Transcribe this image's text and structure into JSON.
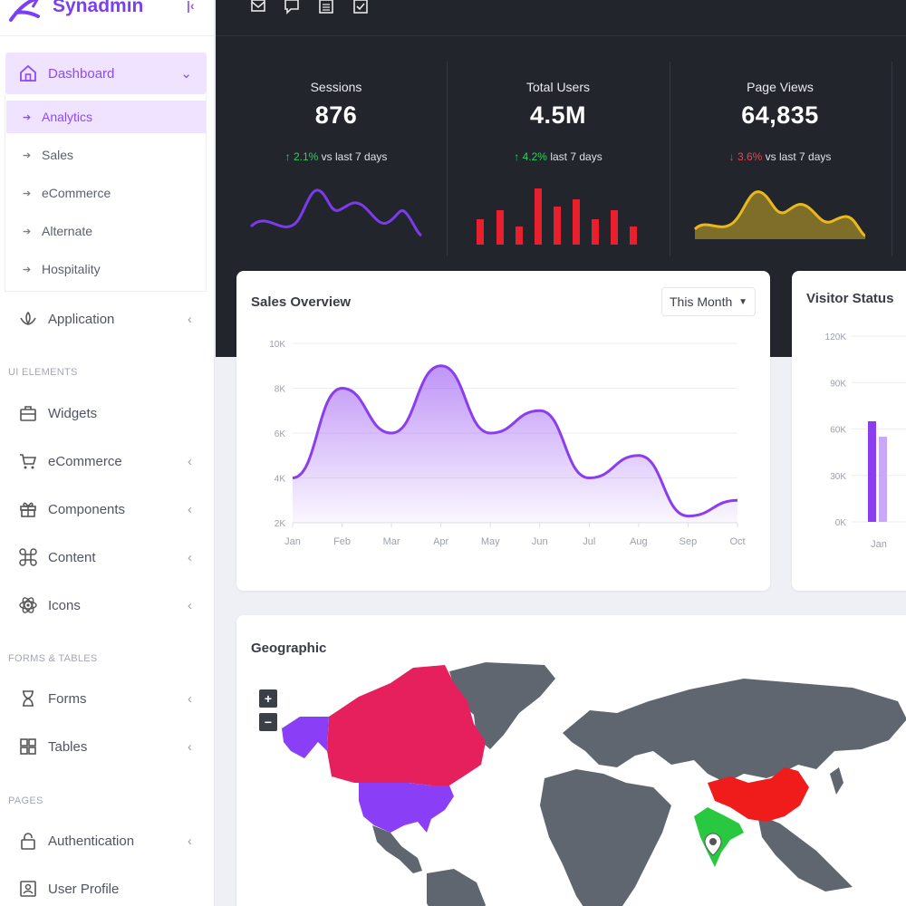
{
  "brand": {
    "name": "Synadmin"
  },
  "sidebar": {
    "dashboard": "Dashboard",
    "submenu": [
      "Analytics",
      "Sales",
      "eCommerce",
      "Alternate",
      "Hospitality"
    ],
    "application": "Application",
    "sections": {
      "ui": "UI ELEMENTS",
      "forms": "FORMS & TABLES",
      "pages": "PAGES"
    },
    "ui_items": [
      "Widgets",
      "eCommerce",
      "Components",
      "Content",
      "Icons"
    ],
    "form_items": [
      "Forms",
      "Tables"
    ],
    "page_items": [
      "Authentication",
      "User Profile"
    ]
  },
  "topbar": {
    "icons": [
      "mail-icon",
      "chat-icon",
      "calendar-icon",
      "todo-icon"
    ]
  },
  "stats": [
    {
      "title": "Sessions",
      "value": "876",
      "change": "2.1%",
      "direction": "up",
      "suffix": "vs last 7 days",
      "color": "#7c3aed"
    },
    {
      "title": "Total Users",
      "value": "4.5M",
      "change": "4.2%",
      "direction": "up",
      "suffix": "last 7 days",
      "color": "#e8202e"
    },
    {
      "title": "Page Views",
      "value": "64,835",
      "change": "3.6%",
      "direction": "down",
      "suffix": "vs last 7 days",
      "color": "#e9b91b"
    }
  ],
  "sales_overview": {
    "title": "Sales Overview",
    "filter": "This Month",
    "chart_data": {
      "type": "area",
      "categories": [
        "Jan",
        "Feb",
        "Mar",
        "Apr",
        "May",
        "Jun",
        "Jul",
        "Aug",
        "Sep",
        "Oct"
      ],
      "values": [
        4000,
        8000,
        6000,
        9000,
        6000,
        7000,
        4000,
        5000,
        2300,
        3000
      ],
      "yticks": [
        "10K",
        "8K",
        "6K",
        "4K",
        "2K"
      ],
      "ylim": [
        2000,
        10000
      ],
      "color": "#8b3df0"
    }
  },
  "visitor_status": {
    "title": "Visitor Status",
    "chart_data": {
      "type": "bar",
      "categories": [
        "Jan"
      ],
      "series": [
        {
          "values": [
            65000
          ]
        },
        {
          "values": [
            55000
          ]
        }
      ],
      "yticks": [
        "120K",
        "90K",
        "60K",
        "30K",
        "0K"
      ],
      "ylim": [
        0,
        120000
      ]
    }
  },
  "geographic": {
    "title": "Geographic",
    "zoom_in": "+",
    "zoom_out": "−",
    "colors": {
      "land": "#5f6670",
      "usa": "#8a3ff6",
      "canada": "#e61f5d",
      "china": "#f01c1c",
      "india": "#28c840"
    }
  }
}
